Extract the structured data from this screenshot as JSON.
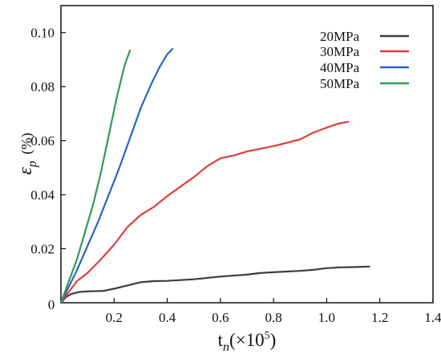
{
  "chart_data": {
    "type": "line",
    "title": "",
    "xlabel": {
      "base": "t",
      "sub": "n",
      "rest": "(×10",
      "sup": "5",
      "close": ")"
    },
    "ylabel": {
      "base": "ε",
      "sub": "p",
      "unit": "(%)"
    },
    "xlim": [
      0,
      1.4
    ],
    "ylim": [
      0,
      0.11
    ],
    "x_ticks": [
      {
        "value": 0.2,
        "label": "0.2"
      },
      {
        "value": 0.4,
        "label": "0.4"
      },
      {
        "value": 0.6,
        "label": "0.6"
      },
      {
        "value": 0.8,
        "label": "0.8"
      },
      {
        "value": 1.0,
        "label": "1.0"
      },
      {
        "value": 1.2,
        "label": "1.2"
      },
      {
        "value": 1.4,
        "label": "1.4"
      }
    ],
    "y_ticks": [
      {
        "value": 0.0,
        "label": "0"
      },
      {
        "value": 0.02,
        "label": "0.02"
      },
      {
        "value": 0.04,
        "label": "0.04"
      },
      {
        "value": 0.06,
        "label": "0.06"
      },
      {
        "value": 0.08,
        "label": "0.08"
      },
      {
        "value": 0.1,
        "label": "0.10"
      }
    ],
    "grid": false,
    "legend_position": "top-right",
    "series": [
      {
        "name": "20MPa",
        "color": "#3d3d3d",
        "x": [
          0,
          0.02,
          0.04,
          0.07,
          0.1,
          0.13,
          0.16,
          0.2,
          0.25,
          0.3,
          0.35,
          0.4,
          0.5,
          0.6,
          0.7,
          0.75,
          0.8,
          0.9,
          0.95,
          1.0,
          1.05,
          1.1,
          1.16
        ],
        "y": [
          0,
          0.0022,
          0.0033,
          0.004,
          0.0042,
          0.0043,
          0.0044,
          0.0052,
          0.0064,
          0.0076,
          0.008,
          0.0081,
          0.0087,
          0.0097,
          0.0104,
          0.011,
          0.0113,
          0.0118,
          0.0122,
          0.0128,
          0.0131,
          0.0132,
          0.0134
        ]
      },
      {
        "name": "30MPa",
        "color": "#e03c3c",
        "x": [
          0,
          0.03,
          0.06,
          0.1,
          0.15,
          0.2,
          0.25,
          0.3,
          0.35,
          0.4,
          0.45,
          0.5,
          0.55,
          0.6,
          0.65,
          0.7,
          0.75,
          0.8,
          0.85,
          0.9,
          0.95,
          1.0,
          1.04,
          1.08
        ],
        "y": [
          0,
          0.004,
          0.008,
          0.011,
          0.016,
          0.0215,
          0.028,
          0.0325,
          0.0355,
          0.0395,
          0.043,
          0.0465,
          0.0505,
          0.0535,
          0.0545,
          0.056,
          0.057,
          0.058,
          0.0592,
          0.0605,
          0.063,
          0.0648,
          0.0662,
          0.067
        ]
      },
      {
        "name": "40MPa",
        "color": "#2b63c4",
        "x": [
          0,
          0.03,
          0.06,
          0.1,
          0.14,
          0.18,
          0.22,
          0.26,
          0.3,
          0.34,
          0.37,
          0.4,
          0.42
        ],
        "y": [
          0,
          0.006,
          0.012,
          0.021,
          0.03,
          0.04,
          0.05,
          0.061,
          0.072,
          0.081,
          0.087,
          0.092,
          0.094
        ]
      },
      {
        "name": "50MPa",
        "color": "#2e9a5a",
        "x": [
          0,
          0.03,
          0.06,
          0.09,
          0.12,
          0.15,
          0.18,
          0.21,
          0.24,
          0.26
        ],
        "y": [
          0,
          0.008,
          0.016,
          0.026,
          0.036,
          0.048,
          0.062,
          0.076,
          0.088,
          0.0935
        ]
      }
    ]
  }
}
